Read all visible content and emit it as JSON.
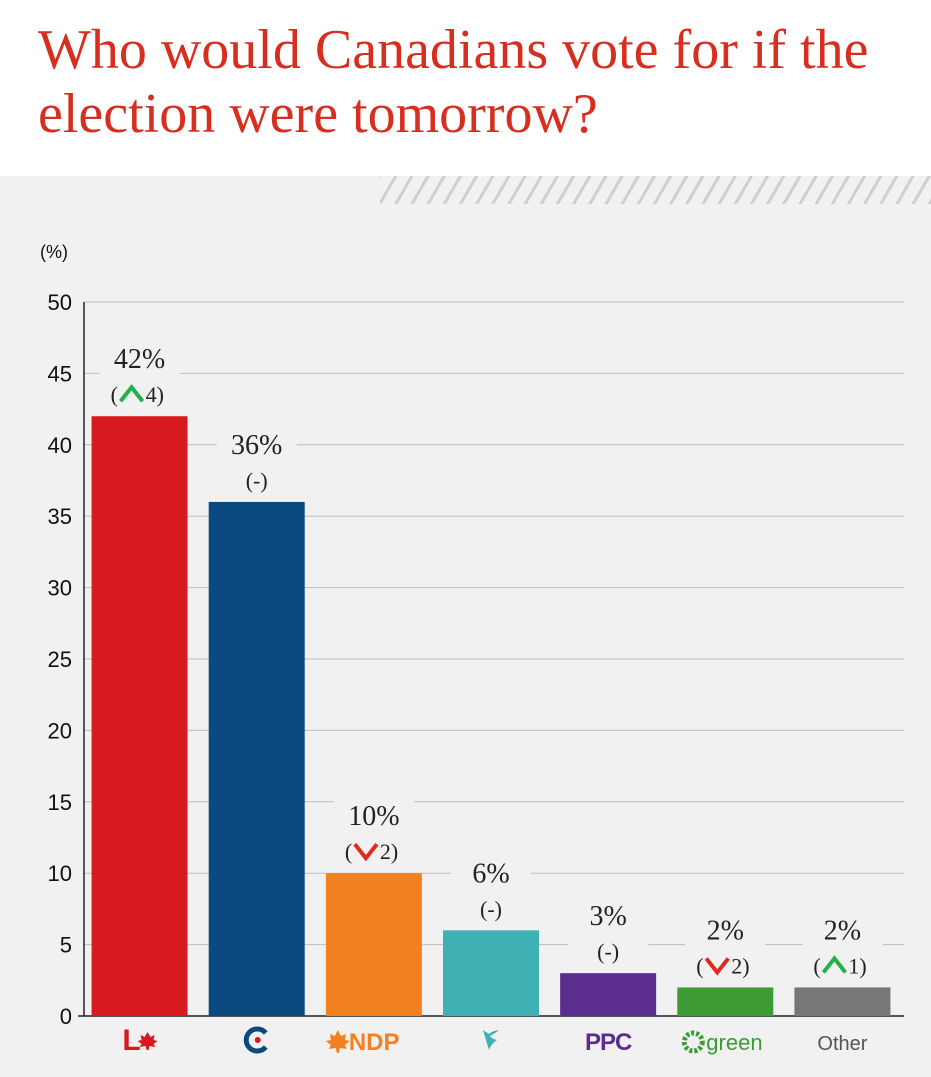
{
  "title": "Who would Canadians vote for if the election were tomorrow?",
  "chart_data": {
    "type": "bar",
    "ylabel": "(%)",
    "ylim": [
      0,
      50
    ],
    "yticks": [
      0,
      5,
      10,
      15,
      20,
      25,
      30,
      35,
      40,
      45,
      50
    ],
    "grid": true,
    "categories": [
      "L",
      "C",
      "NDP",
      "",
      "PPC",
      "green",
      "Other"
    ],
    "category_icons": [
      "liberal-logo-icon",
      "conservative-logo-icon",
      "ndp-logo-icon",
      "bloc-logo-icon",
      "ppc-logo-icon",
      "green-logo-icon",
      ""
    ],
    "values": [
      42,
      36,
      10,
      6,
      3,
      2,
      2
    ],
    "value_labels": [
      "42%",
      "36%",
      "10%",
      "6%",
      "3%",
      "2%",
      "2%"
    ],
    "changes": [
      {
        "direction": "up",
        "amount": "4"
      },
      {
        "direction": "none",
        "amount": "-"
      },
      {
        "direction": "down",
        "amount": "2"
      },
      {
        "direction": "none",
        "amount": "-"
      },
      {
        "direction": "none",
        "amount": "-"
      },
      {
        "direction": "down",
        "amount": "2"
      },
      {
        "direction": "up",
        "amount": "1"
      }
    ],
    "colors": [
      "#d71920",
      "#0a4a80",
      "#f48120",
      "#3fb0b3",
      "#5b2d8e",
      "#3d9b35",
      "#777777"
    ],
    "change_colors": {
      "up": "#22b04a",
      "down": "#e0291f"
    }
  }
}
